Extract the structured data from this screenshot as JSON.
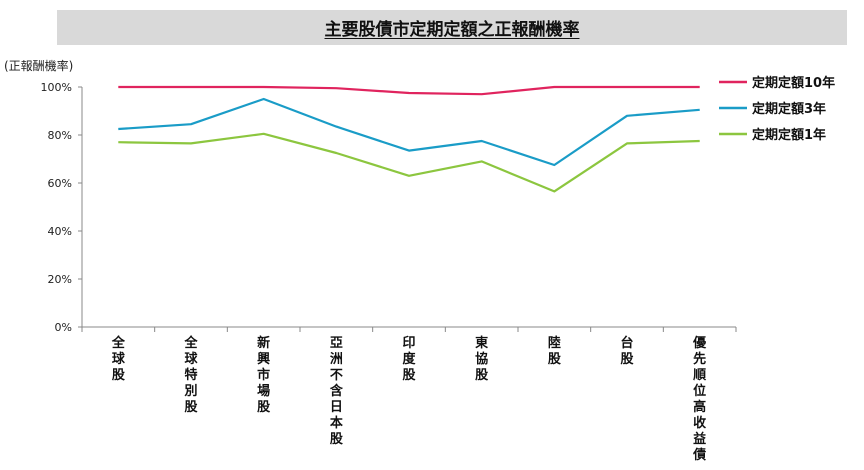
{
  "title": "主要股債市定期定額之正報酬機率",
  "chart_data": {
    "type": "line",
    "title": "主要股債市定期定額之正報酬機率",
    "ylabel": "(正報酬機率)",
    "ylim": [
      0,
      100
    ],
    "yticks": [
      "0%",
      "20%",
      "40%",
      "60%",
      "80%",
      "100%"
    ],
    "ytick_values": [
      0,
      20,
      40,
      60,
      80,
      100
    ],
    "grid": false,
    "legend": "right",
    "categories": [
      "全球股",
      "全球特別股",
      "新興市場股",
      "亞洲不含日本股",
      "印度股",
      "東協股",
      "陸股",
      "台股",
      "優先順位高收益債"
    ],
    "series": [
      {
        "name": "定期定額10年",
        "color": "#e0245e",
        "values": [
          100,
          100,
          100,
          99.5,
          97.5,
          97,
          100,
          100,
          100
        ]
      },
      {
        "name": "定期定額3年",
        "color": "#1a9cc7",
        "values": [
          82.5,
          84.5,
          95,
          83.5,
          73.5,
          77.5,
          67.5,
          88,
          90.5
        ]
      },
      {
        "name": "定期定額1年",
        "color": "#8cc63f",
        "values": [
          77,
          76.5,
          80.5,
          72.5,
          63,
          69,
          56.5,
          76.5,
          77.5
        ]
      }
    ]
  }
}
